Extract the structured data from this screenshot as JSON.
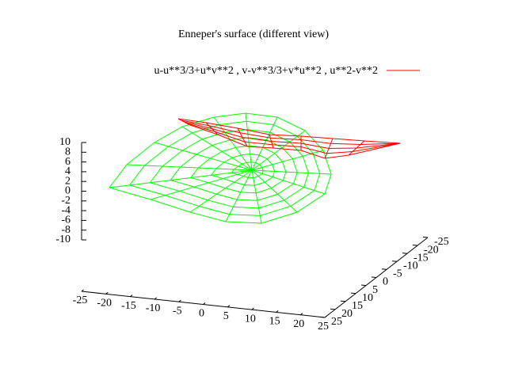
{
  "chart_data": {
    "type": "surface",
    "title": "Enneper's surface (different view)",
    "series": [
      {
        "name": "u-u**3/3+u*v**2 , v-v**3/3+v*u**2 , u**2-v**2",
        "color": "#ff0000",
        "surface_color": "#00ff00"
      }
    ],
    "xlim": [
      -25,
      25
    ],
    "xticks": [
      -25,
      -20,
      -15,
      -10,
      -5,
      0,
      5,
      10,
      15,
      20,
      25
    ],
    "ylim": [
      -25,
      25
    ],
    "yticks": [
      -25,
      -20,
      -15,
      -10,
      -5,
      0,
      5,
      10,
      15,
      20,
      25
    ],
    "zlim": [
      -10,
      10
    ],
    "zticks": [
      -10,
      -8,
      -6,
      -4,
      -2,
      0,
      2,
      4,
      6,
      8,
      10
    ]
  }
}
